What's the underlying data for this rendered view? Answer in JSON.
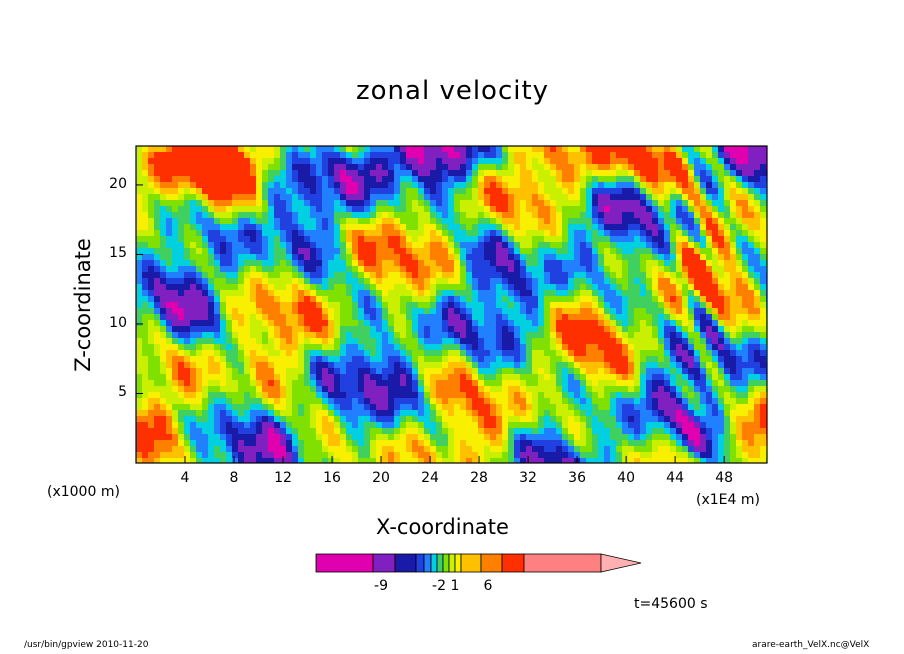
{
  "chart_data": {
    "type": "heatmap",
    "title": "zonal velocity",
    "xlabel": "X-coordinate",
    "ylabel": "Z-coordinate",
    "x_unit_left": "(x1000 m)",
    "x_unit_right": "(x1E4 m)",
    "x_ticks": [
      "4",
      "8",
      "12",
      "16",
      "20",
      "24",
      "28",
      "32",
      "36",
      "40",
      "44",
      "48"
    ],
    "y_ticks": [
      "5",
      "10",
      "15",
      "20"
    ],
    "xlim": [
      0,
      51.5
    ],
    "ylim": [
      0,
      22.8
    ],
    "grid": false,
    "colorbar": {
      "orientation": "horizontal",
      "position": "below",
      "labels": [
        "-9",
        "-2",
        "1",
        "6"
      ],
      "colors": [
        "#e000b0",
        "#8020c0",
        "#1a1aa8",
        "#2040e0",
        "#2080ff",
        "#00d0e0",
        "#40d060",
        "#80e000",
        "#c8f000",
        "#f8f000",
        "#ffc000",
        "#ff8000",
        "#ff3000",
        "#ff8080",
        "#ffb0b0"
      ]
    },
    "time_label": "t=45600 s"
  },
  "footer": {
    "left": "/usr/bin/gpview   2010-11-20",
    "right": "arare-earth_VelX.nc@VelX"
  }
}
